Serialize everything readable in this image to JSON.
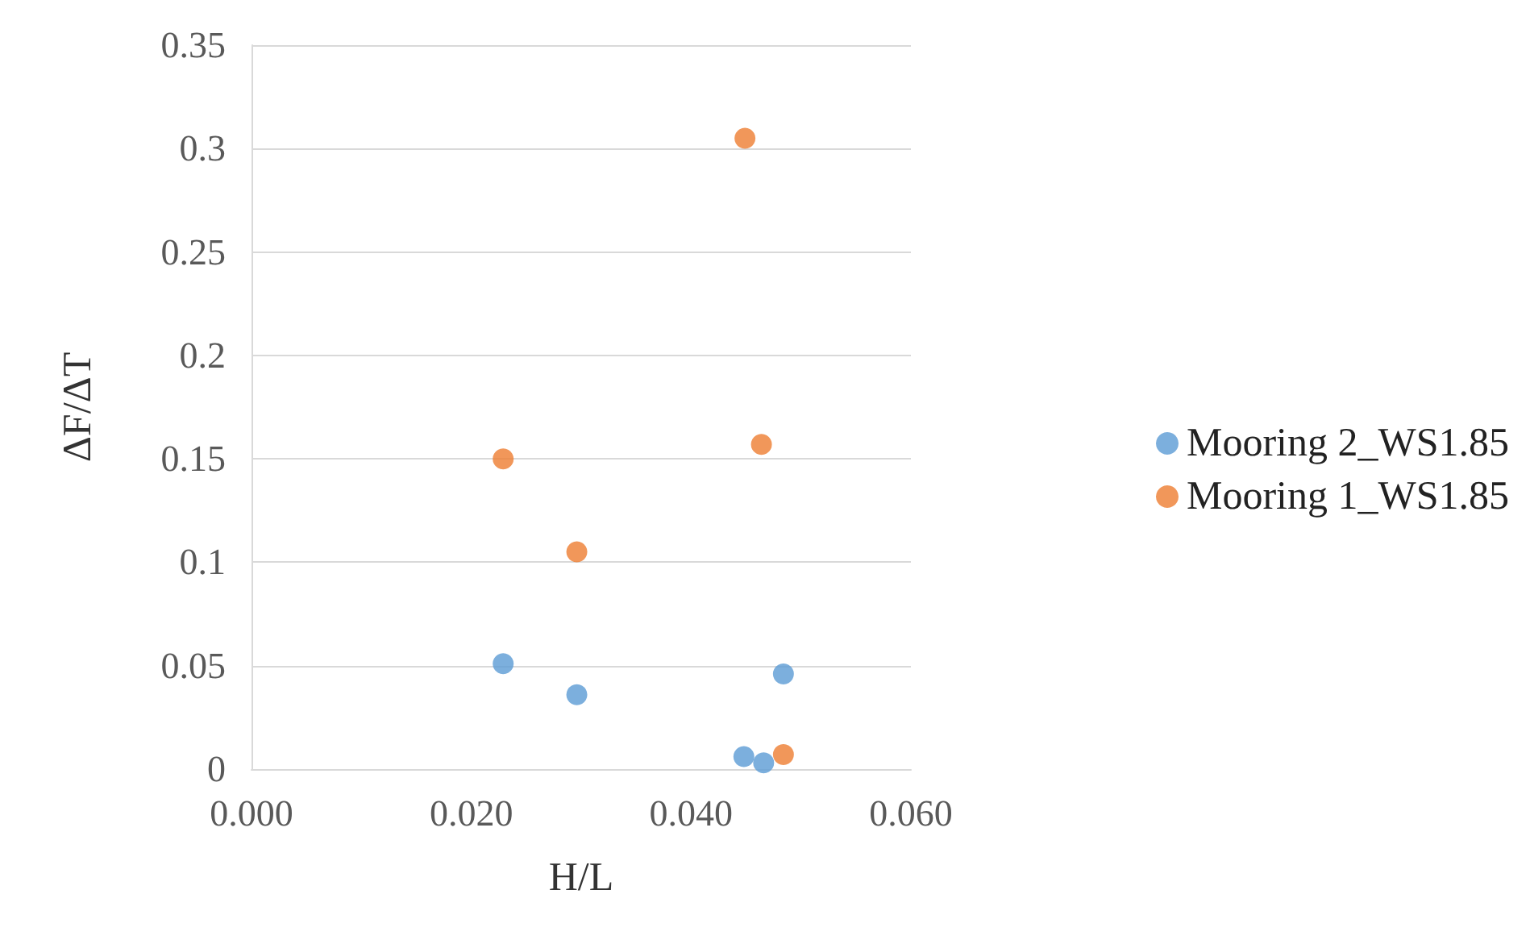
{
  "chart_data": {
    "type": "scatter",
    "xlabel": "H/L",
    "ylabel": "ΔF/ΔT",
    "xlim": [
      0,
      0.06
    ],
    "xticks": [
      {
        "value": 0,
        "label": "0.000"
      },
      {
        "value": 0.02,
        "label": "0.020"
      },
      {
        "value": 0.04,
        "label": "0.040"
      },
      {
        "value": 0.06,
        "label": "0.060"
      }
    ],
    "ylim": [
      0,
      0.35
    ],
    "yticks": [
      0,
      0.05,
      0.1,
      0.15,
      0.2,
      0.25,
      0.3,
      0.35
    ],
    "grid": "y",
    "legend": "right",
    "marker": "circle",
    "series": [
      {
        "name": "Mooring 2_WS1.85",
        "color": "#5b9bd5",
        "x": [
          0.0229,
          0.0296,
          0.0484,
          0.0448,
          0.0466
        ],
        "values": [
          0.051,
          0.036,
          0.046,
          0.006,
          0.003
        ]
      },
      {
        "name": "Mooring 1_WS1.85",
        "color": "#ed7d31",
        "x": [
          0.0449,
          0.0464,
          0.0229,
          0.0296,
          0.0484
        ],
        "values": [
          0.305,
          0.157,
          0.15,
          0.105,
          0.007
        ]
      }
    ]
  }
}
